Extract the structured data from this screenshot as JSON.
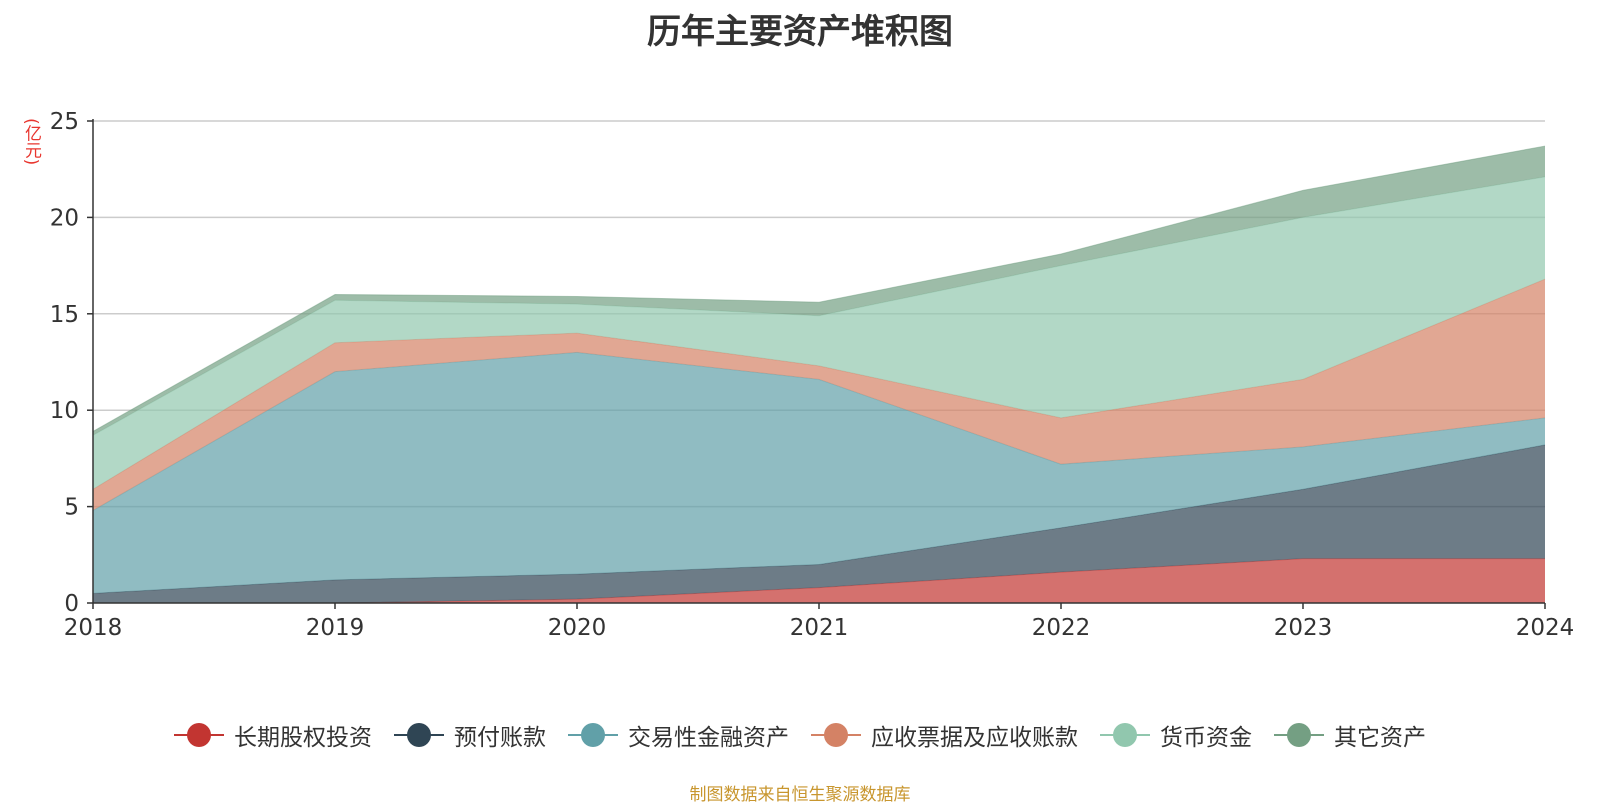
{
  "chart_data": {
    "type": "area",
    "stacked": true,
    "title": "历年主要资产堆积图",
    "unit_label": "(亿元)",
    "x": [
      "2018",
      "2019",
      "2020",
      "2021",
      "2022",
      "2023",
      "2024"
    ],
    "ylim": [
      0,
      25
    ],
    "yticks": [
      "0",
      "5",
      "10",
      "15",
      "20",
      "25"
    ],
    "grid": true,
    "legend_position": "bottom",
    "series": [
      {
        "name": "长期股权投资",
        "color": "#c23531",
        "values": [
          0,
          0,
          0.2,
          0.8,
          1.6,
          2.3,
          2.3
        ]
      },
      {
        "name": "预付账款",
        "color": "#2f4554",
        "values": [
          0.5,
          1.2,
          1.3,
          1.2,
          2.3,
          3.6,
          5.9
        ]
      },
      {
        "name": "交易性金融资产",
        "color": "#61a0a8",
        "values": [
          4.3,
          10.8,
          11.5,
          9.6,
          3.3,
          2.2,
          1.4
        ]
      },
      {
        "name": "应收票据及应收账款",
        "color": "#d48265",
        "values": [
          1.1,
          1.5,
          1.0,
          0.7,
          2.4,
          3.5,
          7.2
        ]
      },
      {
        "name": "货币资金",
        "color": "#91c7ae",
        "values": [
          2.8,
          2.2,
          1.5,
          2.6,
          7.9,
          8.4,
          5.3
        ]
      },
      {
        "name": "其它资产",
        "color": "#749f83",
        "values": [
          0.2,
          0.3,
          0.4,
          0.7,
          0.6,
          1.4,
          1.6
        ]
      }
    ]
  },
  "source_text": "制图数据来自恒生聚源数据库"
}
